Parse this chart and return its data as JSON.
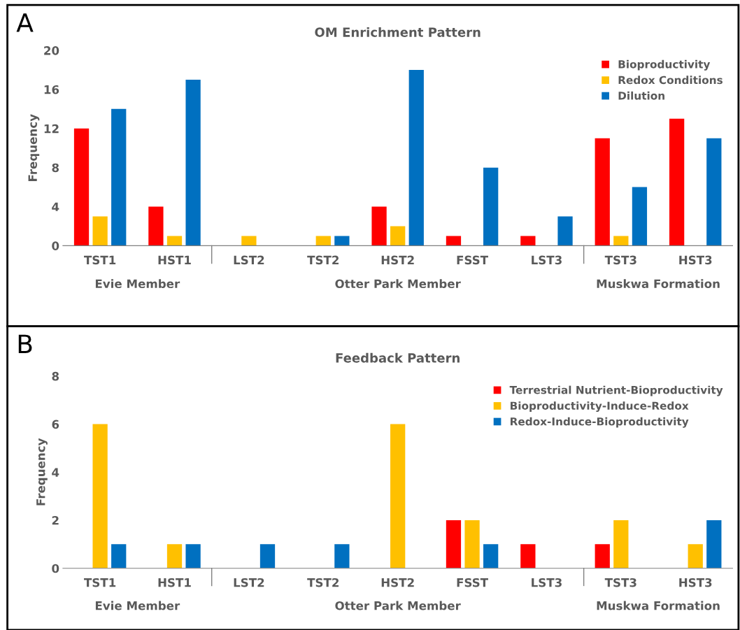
{
  "chart_data": [
    {
      "type": "bar",
      "title": "OM Enrichment Pattern",
      "ylabel": "Frequency",
      "categories": [
        "TST1",
        "HST1",
        "LST2",
        "TST2",
        "HST2",
        "FSST",
        "LST3",
        "TST3",
        "HST3"
      ],
      "series": [
        {
          "name": "Bioproductivity",
          "color": "#ff0000",
          "values": [
            12,
            4,
            0,
            0,
            4,
            1,
            1,
            11,
            13
          ]
        },
        {
          "name": "Redox Conditions",
          "color": "#ffc000",
          "values": [
            3,
            1,
            1,
            1,
            2,
            0,
            0,
            1,
            0
          ]
        },
        {
          "name": "Dilution",
          "color": "#0070c0",
          "values": [
            14,
            17,
            0,
            1,
            18,
            8,
            3,
            6,
            11
          ]
        }
      ],
      "ylim": [
        0,
        20
      ],
      "yticks": [
        0,
        4,
        8,
        12,
        16,
        20
      ],
      "legend": "top right",
      "annotations": [
        "A",
        "Evie Member",
        "Otter Park Member",
        "Muskwa Formation"
      ]
    },
    {
      "type": "bar",
      "title": "Feedback Pattern",
      "ylabel": "Frequency",
      "categories": [
        "TST1",
        "HST1",
        "LST2",
        "TST2",
        "HST2",
        "FSST",
        "LST3",
        "TST3",
        "HST3"
      ],
      "series": [
        {
          "name": "Terrestrial Nutrient-Bioproductivity",
          "color": "#ff0000",
          "values": [
            0,
            0,
            0,
            0,
            0,
            2,
            1,
            1,
            0
          ]
        },
        {
          "name": "Bioproductivity-Induce-Redox",
          "color": "#ffc000",
          "values": [
            6,
            1,
            0,
            0,
            6,
            2,
            0,
            2,
            1
          ]
        },
        {
          "name": "Redox-Induce-Bioproductivity",
          "color": "#0070c0",
          "values": [
            1,
            1,
            1,
            1,
            0,
            1,
            0,
            0,
            2
          ]
        }
      ],
      "ylim": [
        0,
        8
      ],
      "yticks": [
        0,
        2,
        4,
        6,
        8
      ],
      "legend": "top right",
      "annotations": [
        "B",
        "Evie Member",
        "Otter Park Member",
        "Muskwa Formation"
      ]
    }
  ]
}
